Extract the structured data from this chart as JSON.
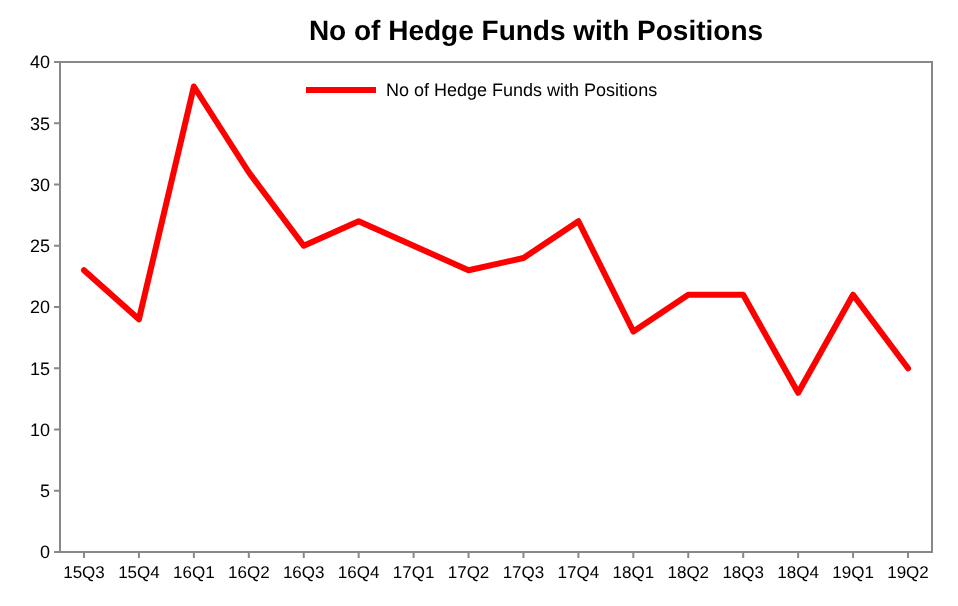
{
  "chart_data": {
    "type": "line",
    "title": "No of Hedge Funds with Positions",
    "categories": [
      "15Q3",
      "15Q4",
      "16Q1",
      "16Q2",
      "16Q3",
      "16Q4",
      "17Q1",
      "17Q2",
      "17Q3",
      "17Q4",
      "18Q1",
      "18Q2",
      "18Q3",
      "18Q4",
      "19Q1",
      "19Q2"
    ],
    "series": [
      {
        "name": "No of Hedge Funds with Positions",
        "color": "#ff0000",
        "values": [
          23,
          19,
          38,
          31,
          25,
          27,
          25,
          23,
          24,
          27,
          18,
          21,
          21,
          13,
          21,
          15
        ]
      }
    ],
    "ylim": [
      0,
      40
    ],
    "yticks": [
      0,
      5,
      10,
      15,
      20,
      25,
      30,
      35,
      40
    ],
    "grid": false,
    "legend": "top",
    "marker": "none",
    "line_style": "solid"
  }
}
